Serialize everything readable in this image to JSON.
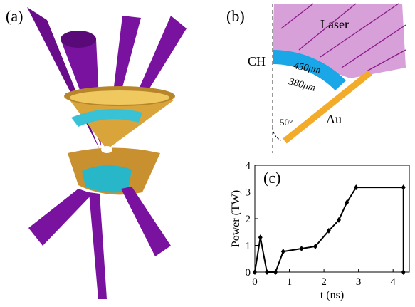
{
  "panels": {
    "a": {
      "label": "(a)"
    },
    "b": {
      "label": "(b)",
      "laser": "Laser",
      "ch": "CH",
      "outer": "450μm",
      "inner": "380μm",
      "au": "Au",
      "angle": "50°"
    }
  },
  "chart_data": {
    "type": "line",
    "label": "(c)",
    "xlabel": "t (ns)",
    "ylabel": "Power (TW)",
    "series": [
      {
        "color": "#000000",
        "x": [
          0,
          0.16,
          0.35,
          0.6,
          0.82,
          1.35,
          1.75,
          2.14,
          2.43,
          2.66,
          2.93,
          4.3,
          4.3
        ],
        "values": [
          0,
          1.3,
          0,
          0,
          0.77,
          0.88,
          0.96,
          1.55,
          1.95,
          2.6,
          3.17,
          3.17,
          0
        ]
      }
    ],
    "xlim": [
      0,
      4.47
    ],
    "ylim": [
      0,
      4
    ],
    "xticks": [
      0,
      1,
      2,
      3,
      4
    ],
    "yticks": [
      0,
      1,
      2,
      3,
      4
    ]
  }
}
